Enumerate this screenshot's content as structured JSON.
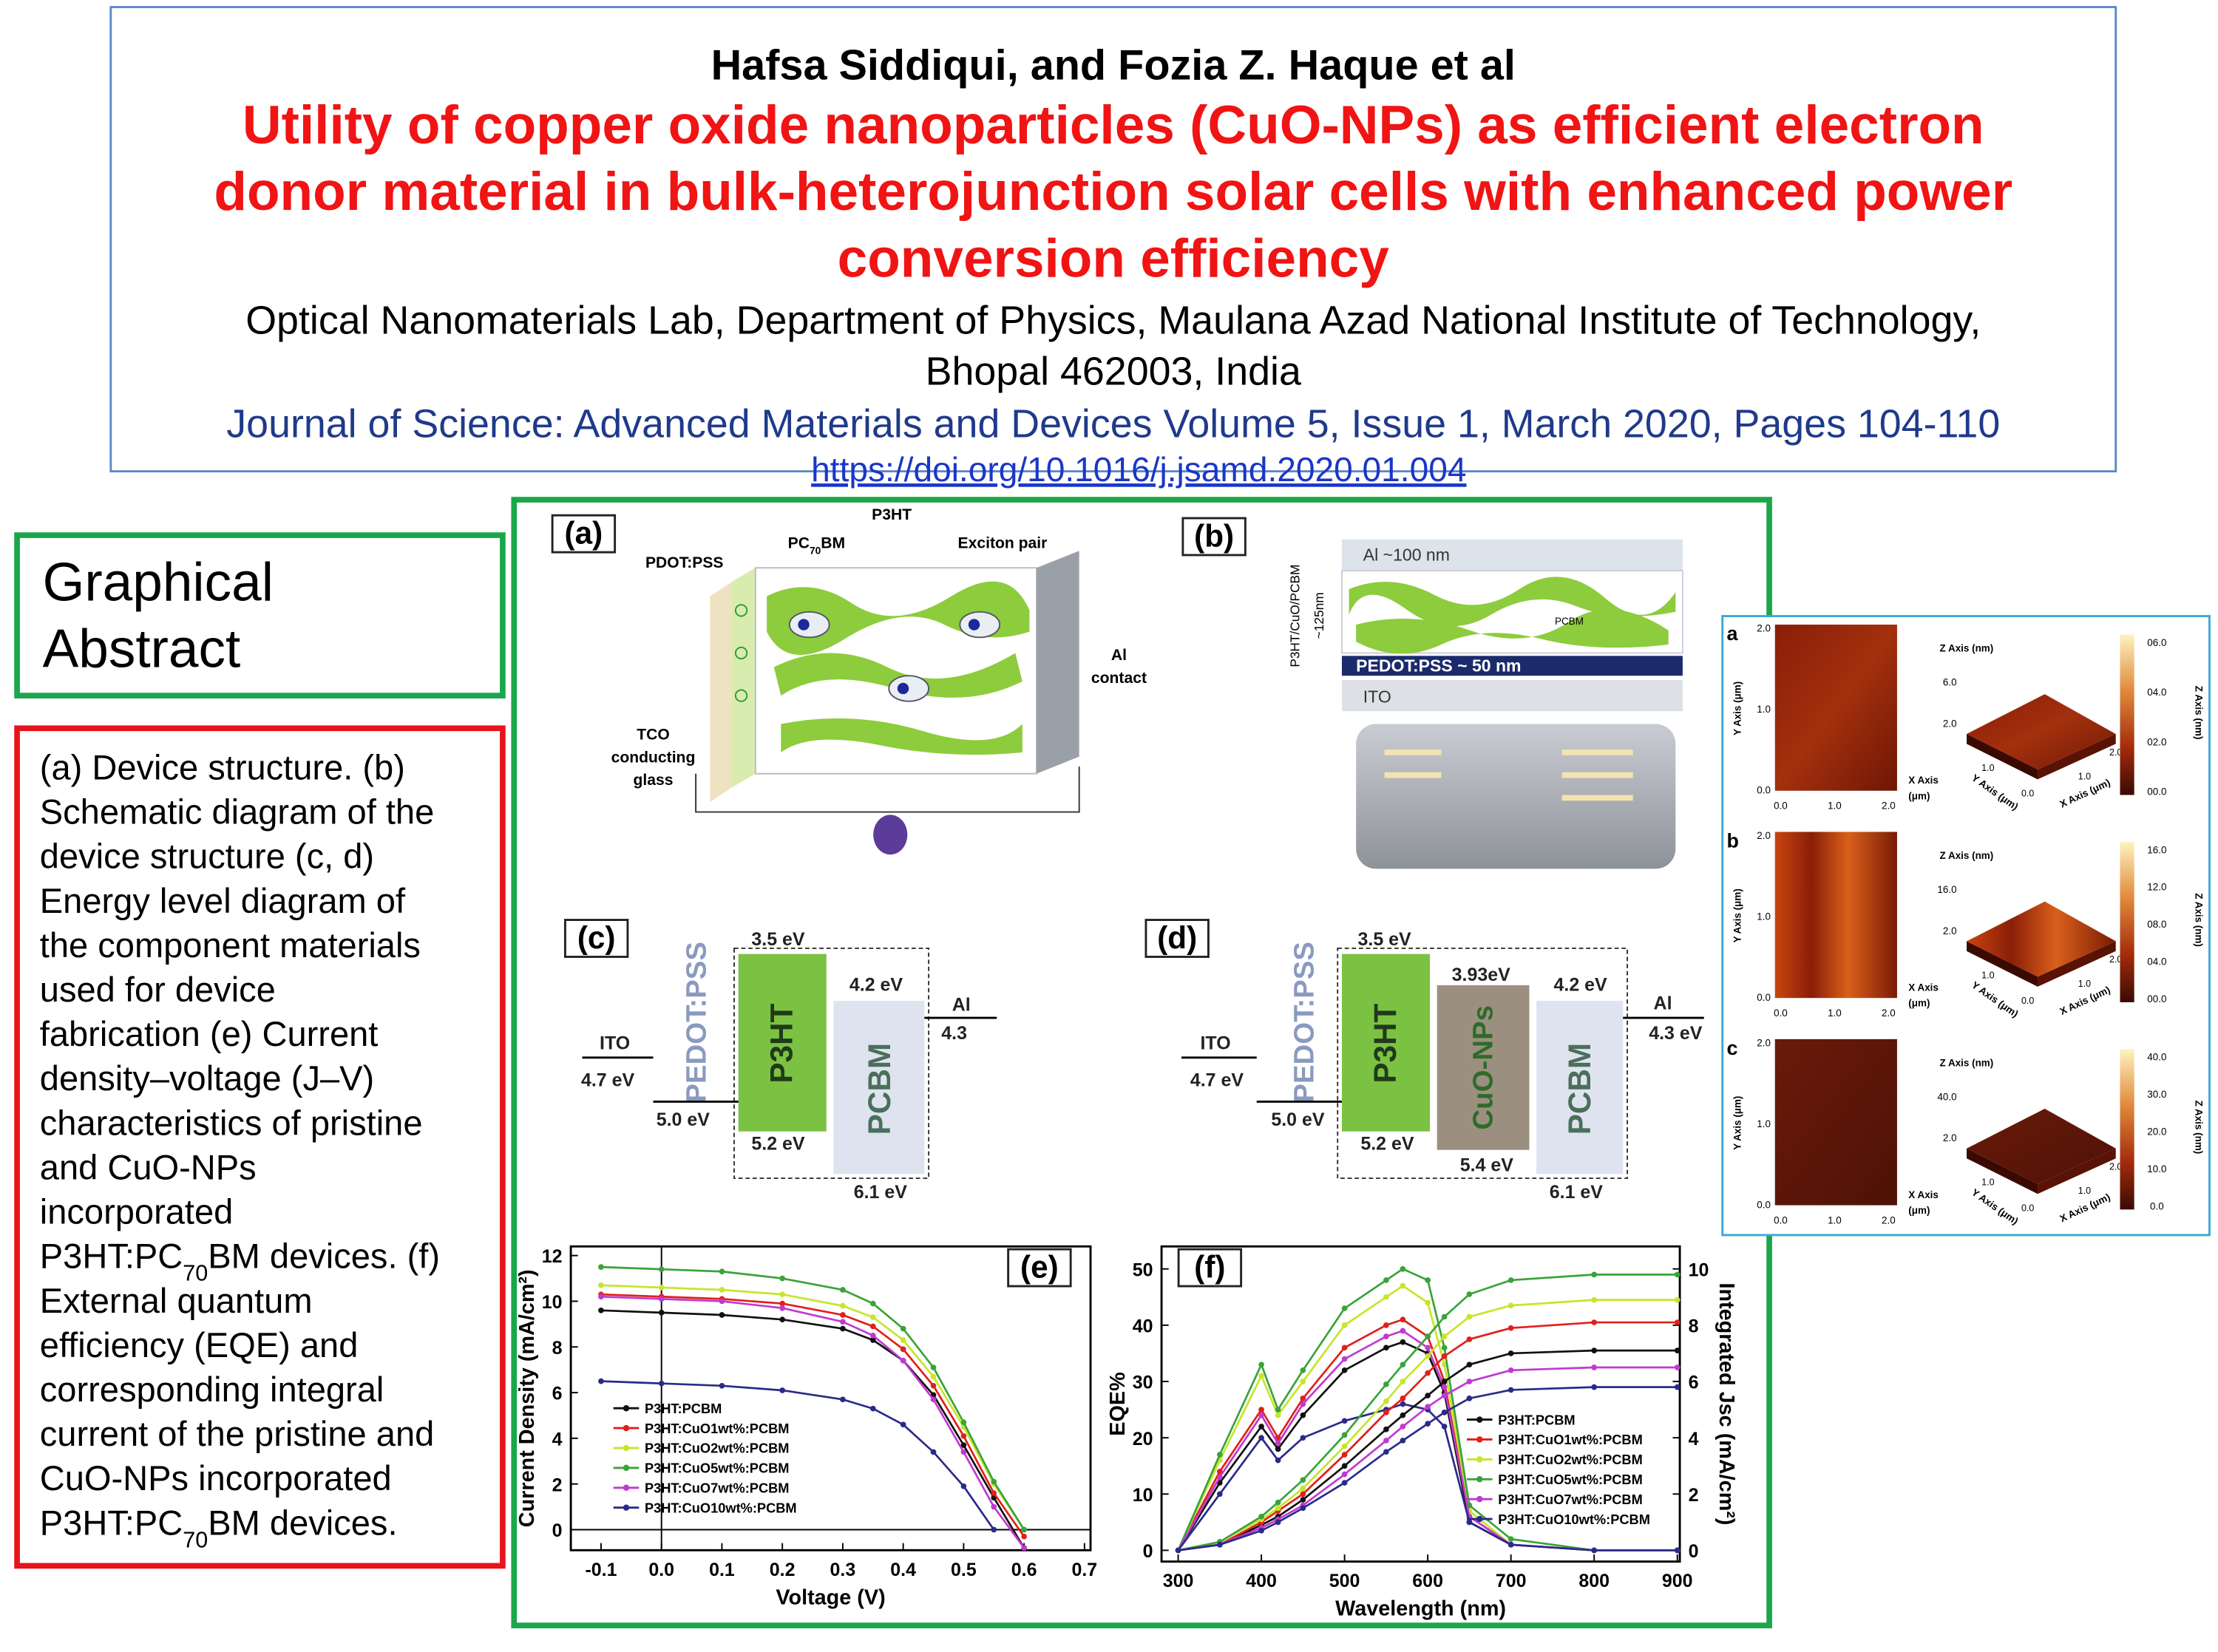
{
  "header": {
    "author": "Hafsa  Siddiqui, and Fozia Z. Haque et al",
    "title_lines": [
      "Utility of copper oxide nanoparticles (CuO-NPs) as efficient electron",
      "donor material in bulk-heterojunction solar cells with enhanced power",
      "conversion efficiency"
    ],
    "affiliation_lines": [
      "Optical Nanomaterials Lab, Department of Physics, Maulana Azad National Institute of Technology,",
      "Bhopal 462003, India"
    ],
    "journal": "Journal of Science: Advanced Materials and Devices Volume 5, Issue 1, March 2020, Pages 104-110",
    "doi": "https://doi.org/10.1016/j.jsamd.2020.01.004"
  },
  "graphical_abstract": {
    "title_lines": [
      "Graphical",
      "Abstract"
    ]
  },
  "caption": {
    "lines": [
      " (a) Device structure. (b)",
      "Schematic diagram of the",
      "device structure (c, d)",
      "Energy level diagram of",
      "the component materials",
      "used for device",
      "fabrication  (e) Current",
      "density–voltage (J–V)",
      "characteristics of pristine",
      "and CuO-NPs",
      "incorporated",
      {
        "before": "P3HT:PC",
        "sub": "70",
        "after": "BM devices. (f)"
      },
      "External quantum",
      "efficiency (EQE) and",
      "corresponding integral",
      "current of the pristine and",
      "CuO-NPs incorporated",
      {
        "before": "P3HT:PC",
        "sub": "70",
        "after": "BM devices."
      }
    ]
  },
  "figure": {
    "panel_a": {
      "label": "(a)",
      "p3ht": "P3HT",
      "pc70bm": {
        "before": "PC",
        "sub": "70",
        "after": "BM"
      },
      "exciton": "Exciton pair",
      "pedot": "PDOT:PSS",
      "al_lines": [
        "Al",
        "contact"
      ],
      "tco_lines": [
        "TCO",
        "conducting",
        "glass"
      ]
    },
    "panel_b": {
      "label": "(b)",
      "al": "Al ~100 nm",
      "layer": "P3HT/CuO/PCBM",
      "thickness": "~125nm",
      "pcbm": "PCBM",
      "pedot": "PEDOT:PSS ~ 50 nm",
      "ito": "ITO"
    },
    "panel_c": {
      "label": "(c)",
      "lumo_p3ht": "3.5 eV",
      "lumo_pcbm": "4.2 eV",
      "al": "Al",
      "al_level": "4.3",
      "ito": "ITO",
      "ito_level": "4.7 eV",
      "pedot": "PEDOT:PSS",
      "p3ht": "P3HT",
      "pcbm": "PCBM",
      "pedot_level": "5.0 eV",
      "homo_p3ht": "5.2 eV",
      "homo_pcbm": "6.1 eV"
    },
    "panel_d": {
      "label": "(d)",
      "lumo_p3ht": "3.5 eV",
      "lumo_cuo": "3.93eV",
      "lumo_pcbm": "4.2 eV",
      "al": "Al",
      "al_level": "4.3 eV",
      "ito": "ITO",
      "ito_level": "4.7 eV",
      "pedot": "PEDOT:PSS",
      "p3ht": "P3HT",
      "cuo": "CuO-NPs",
      "pcbm": "PCBM",
      "pedot_level": "5.0 eV",
      "homo_p3ht": "5.2 eV",
      "homo_cuo": "5.4 eV",
      "homo_pcbm": "6.1 eV"
    },
    "panel_e": {
      "type": "line",
      "panel_label": "(e)",
      "xlabel": "Voltage (V)",
      "ylabel": "Current Density (mA/cm²)",
      "zero_lines": true,
      "legend": "lower left",
      "xlim": [
        -0.15,
        0.71
      ],
      "ylim": [
        -0.9,
        12.4
      ],
      "xticks": [
        -0.1,
        {
          "value": 0,
          "label": "0.0"
        },
        0.1,
        0.2,
        0.3,
        0.4,
        0.5,
        0.6,
        0.7
      ],
      "yticks": [
        0,
        2,
        4,
        6,
        8,
        10,
        12
      ],
      "x": [
        -0.1,
        0,
        0.1,
        0.2,
        0.3,
        0.35,
        0.4,
        0.45,
        0.5,
        0.55,
        0.6
      ],
      "series": [
        {
          "name": "P3HT:PCBM",
          "color": "#111111",
          "values": [
            9.6,
            9.5,
            9.4,
            9.2,
            8.8,
            8.3,
            7.4,
            5.9,
            3.7,
            1.4,
            -0.8
          ]
        },
        {
          "name": "P3HT:CuO1wt%:PCBM",
          "color": "#e0201b",
          "values": [
            10.3,
            10.2,
            10.1,
            9.9,
            9.4,
            8.9,
            7.9,
            6.3,
            4.1,
            1.6,
            -0.3
          ]
        },
        {
          "name": "P3HT:CuO2wt%:PCBM",
          "color": "#c7e52a",
          "values": [
            10.7,
            10.6,
            10.5,
            10.3,
            9.8,
            9.3,
            8.3,
            6.7,
            4.5,
            2.0,
            0.0
          ]
        },
        {
          "name": "P3HT:CuO5wt%:PCBM",
          "color": "#3aa33a",
          "values": [
            11.5,
            11.4,
            11.3,
            11.0,
            10.5,
            9.9,
            8.8,
            7.1,
            4.7,
            2.1,
            0.0
          ]
        },
        {
          "name": "P3HT:CuO7wt%:PCBM",
          "color": "#c03ad0",
          "values": [
            10.2,
            10.1,
            10.0,
            9.7,
            9.1,
            8.5,
            7.4,
            5.7,
            3.4,
            1.0,
            -0.8
          ]
        },
        {
          "name": "P3HT:CuO10wt%:PCBM",
          "color": "#2a2a8a",
          "values": [
            6.5,
            6.4,
            6.3,
            6.1,
            5.7,
            5.3,
            4.6,
            3.4,
            1.9,
            0.0,
            null
          ]
        }
      ]
    },
    "panel_f": {
      "type": "line",
      "panel_label": "(f)",
      "xlabel": "Wavelength (nm)",
      "ylabel": "EQE%",
      "y2label": "Integrated Jsc (mA/cm²)",
      "legend": "lower right",
      "xlim": [
        280,
        903
      ],
      "ylim": [
        -2,
        54
      ],
      "y2lim": [
        -0.4,
        10.8
      ],
      "xticks": [
        300,
        400,
        500,
        600,
        700,
        800,
        900
      ],
      "yticks": [
        0,
        10,
        20,
        30,
        40,
        50
      ],
      "y2ticks": [
        0,
        2,
        4,
        6,
        8,
        10
      ],
      "x": [
        300,
        350,
        400,
        420,
        450,
        500,
        550,
        570,
        600,
        620,
        650,
        700,
        800,
        900
      ],
      "series": [
        {
          "name": "P3HT:PCBM",
          "color": "#111111",
          "values": [
            0,
            12,
            22,
            18,
            24,
            32,
            36,
            37,
            35,
            28,
            5,
            1,
            0,
            0
          ]
        },
        {
          "name": "P3HT:CuO1wt%:PCBM",
          "color": "#e0201b",
          "values": [
            0,
            14,
            25,
            20,
            27,
            36,
            40,
            41,
            38,
            30,
            6,
            1,
            0,
            0
          ]
        },
        {
          "name": "P3HT:CuO2wt%:PCBM",
          "color": "#c7e52a",
          "values": [
            0,
            16,
            31,
            24,
            30,
            40,
            45,
            47,
            44,
            33,
            7,
            1,
            0,
            0
          ]
        },
        {
          "name": "P3HT:CuO5wt%:PCBM",
          "color": "#3aa33a",
          "values": [
            0,
            17,
            33,
            25,
            32,
            43,
            48,
            50,
            48,
            36,
            8,
            2,
            0,
            0
          ]
        },
        {
          "name": "P3HT:CuO7wt%:PCBM",
          "color": "#c03ad0",
          "values": [
            0,
            13,
            24,
            19,
            26,
            34,
            38,
            39,
            36,
            29,
            6,
            1,
            0,
            0
          ]
        },
        {
          "name": "P3HT:CuO10wt%:PCBM",
          "color": "#2a2a8a",
          "values": [
            0,
            10,
            20,
            16,
            20,
            23,
            25,
            26,
            25,
            22,
            5,
            1,
            0,
            0
          ]
        },
        {
          "color": "#111111",
          "axis": "y2",
          "values": [
            0,
            0.2,
            0.9,
            1.2,
            1.8,
            3.0,
            4.3,
            4.8,
            5.5,
            6.0,
            6.6,
            7.0,
            7.1,
            7.1
          ]
        },
        {
          "color": "#e0201b",
          "axis": "y2",
          "values": [
            0,
            0.2,
            1.0,
            1.4,
            2.0,
            3.4,
            4.9,
            5.4,
            6.3,
            6.9,
            7.5,
            7.9,
            8.1,
            8.1
          ]
        },
        {
          "color": "#c7e52a",
          "axis": "y2",
          "values": [
            0,
            0.3,
            1.1,
            1.5,
            2.2,
            3.7,
            5.3,
            6.0,
            6.9,
            7.6,
            8.3,
            8.7,
            8.9,
            8.9
          ]
        },
        {
          "color": "#3aa33a",
          "axis": "y2",
          "values": [
            0,
            0.3,
            1.2,
            1.7,
            2.5,
            4.1,
            5.9,
            6.6,
            7.6,
            8.3,
            9.1,
            9.6,
            9.8,
            9.8
          ]
        },
        {
          "color": "#c03ad0",
          "axis": "y2",
          "values": [
            0,
            0.2,
            0.8,
            1.1,
            1.6,
            2.7,
            3.9,
            4.4,
            5.1,
            5.5,
            6.0,
            6.4,
            6.5,
            6.5
          ]
        },
        {
          "color": "#2a2a8a",
          "axis": "y2",
          "values": [
            0,
            0.2,
            0.7,
            1.0,
            1.5,
            2.4,
            3.5,
            3.9,
            4.5,
            4.9,
            5.4,
            5.7,
            5.8,
            5.8
          ]
        }
      ]
    }
  },
  "afm": {
    "rows": [
      {
        "label": "a",
        "y_axis": "Y Axis (μm)",
        "y_ticks": [
          "2.0",
          "1.0",
          "0.0"
        ],
        "x_ticks": [
          "0.0",
          "1.0",
          "2.0"
        ],
        "x_axis_lines": [
          "X Axis",
          "(μm)"
        ],
        "z_axis": "Z Axis (nm)",
        "z_ticks": [
          "6.0",
          "2.0"
        ],
        "y3d": "Y Axis (μm)",
        "x3d": "X Axis (μm)",
        "surface_ticks": [
          "1.0",
          "0.0",
          "1.0",
          "2.0"
        ],
        "colorbar_ticks": [
          "06.0",
          "04.0",
          "02.0",
          "00.0"
        ],
        "colorbar_label": "Z Axis (nm)"
      },
      {
        "label": "b",
        "y_axis": "Y Axis (μm)",
        "y_ticks": [
          "2.0",
          "1.0",
          "0.0"
        ],
        "x_ticks": [
          "0.0",
          "1.0",
          "2.0"
        ],
        "x_axis_lines": [
          "X Axis",
          "(μm)"
        ],
        "z_axis": "Z Axis (nm)",
        "z_ticks": [
          "16.0",
          "2.0"
        ],
        "y3d": "Y Axis (μm)",
        "x3d": "X Axis (μm)",
        "surface_ticks": [
          "1.0",
          "0.0",
          "1.0",
          "2.0"
        ],
        "colorbar_ticks": [
          "16.0",
          "12.0",
          "08.0",
          "04.0",
          "00.0"
        ],
        "colorbar_label": "Z Axis (nm)"
      },
      {
        "label": "c",
        "y_axis": "Y Axis (μm)",
        "y_ticks": [
          "2.0",
          "1.0",
          "0.0"
        ],
        "x_ticks": [
          "0.0",
          "1.0",
          "2.0"
        ],
        "x_axis_lines": [
          "X Axis",
          "(μm)"
        ],
        "z_axis": "Z Axis (nm)",
        "z_ticks": [
          "40.0",
          "2.0"
        ],
        "y3d": "Y Axis (μm)",
        "x3d": "X Axis (μm)",
        "surface_ticks": [
          "1.0",
          "0.0",
          "1.0",
          "2.0"
        ],
        "colorbar_ticks": [
          "40.0",
          "30.0",
          "20.0",
          "10.0",
          "0.0"
        ],
        "colorbar_label": "Z Axis (nm)"
      }
    ]
  }
}
